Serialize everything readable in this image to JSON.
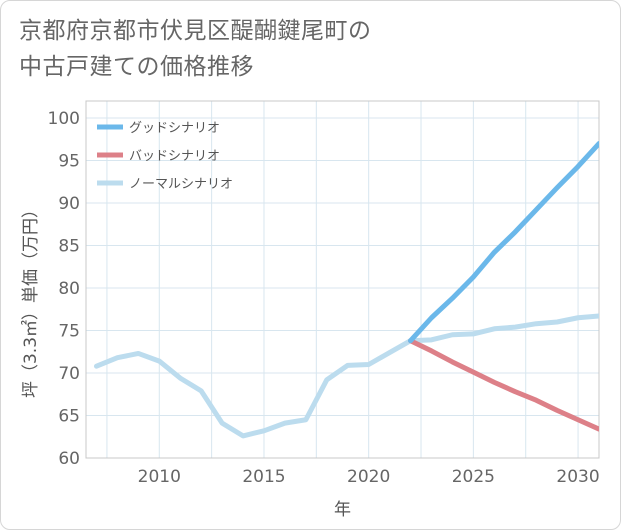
{
  "chart_data": {
    "type": "line",
    "title_line1": "京都府京都市伏見区醍醐鍵尾町の",
    "title_line2": "中古戸建ての価格推移",
    "xlabel": "年",
    "ylabel": "坪（3.3㎡）単価（万円）",
    "xlim": [
      2006.5,
      2031
    ],
    "ylim": [
      60,
      102
    ],
    "x_ticks": [
      2010,
      2015,
      2020,
      2025,
      2030
    ],
    "y_ticks": [
      60,
      65,
      70,
      75,
      80,
      85,
      90,
      95,
      100
    ],
    "grid": true,
    "legend_position": "top-left",
    "series": [
      {
        "name": "グッドシナリオ",
        "color": "#6bb8ea",
        "x": [
          2022,
          2023,
          2024,
          2025,
          2026,
          2027,
          2028,
          2029,
          2030,
          2031
        ],
        "values": [
          73.8,
          76.5,
          78.8,
          81.3,
          84.2,
          86.6,
          89.2,
          91.8,
          94.3,
          97.0
        ]
      },
      {
        "name": "バッドシナリオ",
        "color": "#dd8088",
        "x": [
          2022,
          2023,
          2024,
          2025,
          2026,
          2027,
          2028,
          2029,
          2030,
          2031
        ],
        "values": [
          73.8,
          72.6,
          71.3,
          70.1,
          68.9,
          67.8,
          66.8,
          65.6,
          64.5,
          63.4
        ]
      },
      {
        "name": "ノーマルシナリオ",
        "color": "#bcdcee",
        "x": [
          2007,
          2008,
          2009,
          2010,
          2011,
          2012,
          2013,
          2014,
          2015,
          2016,
          2017,
          2018,
          2019,
          2020,
          2021,
          2022,
          2023,
          2024,
          2025,
          2026,
          2027,
          2028,
          2029,
          2030,
          2031
        ],
        "values": [
          70.8,
          71.8,
          72.3,
          71.4,
          69.4,
          67.9,
          64.1,
          62.6,
          63.2,
          64.1,
          64.5,
          69.2,
          70.9,
          71.0,
          72.4,
          73.8,
          73.9,
          74.5,
          74.6,
          75.2,
          75.4,
          75.8,
          76.0,
          76.5,
          76.7
        ]
      }
    ]
  }
}
